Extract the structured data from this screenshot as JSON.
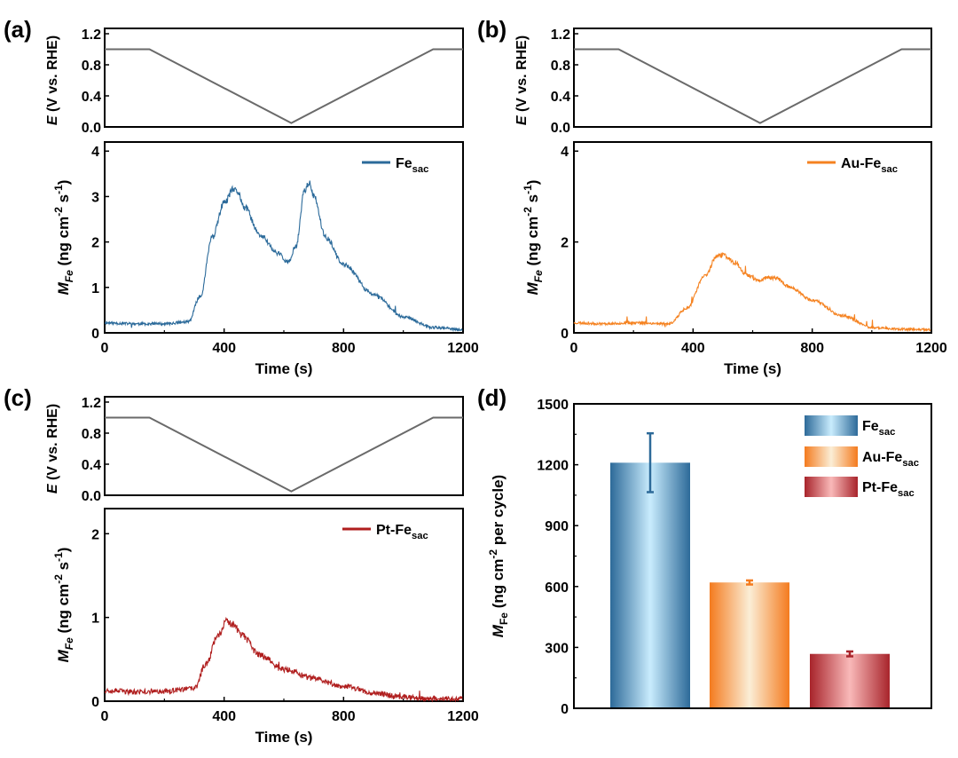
{
  "colors": {
    "fe": "#2b6a9a",
    "au": "#f58220",
    "pt": "#b01e1e",
    "potential": "#6a6a6a"
  },
  "chart_data": [
    {
      "type": "line",
      "panel": "(a)",
      "potential_axis": {
        "ylabel": "E (V vs. RHE)",
        "ylim": [
          0,
          1.2
        ],
        "ticks": [
          "0.0",
          "0.4",
          "0.8",
          "1.2"
        ]
      },
      "potential_profile": {
        "x": [
          0,
          150,
          625,
          1100,
          1200
        ],
        "y": [
          1.0,
          1.0,
          0.05,
          1.0,
          1.0
        ]
      },
      "ylabel": "M_Fe (ng cm^-2 s^-1)",
      "ylim": [
        0,
        4.2
      ],
      "y_ticks": [
        "0",
        "1",
        "2",
        "3",
        "4"
      ],
      "xlim": [
        0,
        1200
      ],
      "x_ticks": [
        "0",
        "400",
        "800",
        "1200"
      ],
      "xlabel": "Time (s)",
      "series": [
        {
          "name": "Fe_sac",
          "legend": "Fe",
          "legend_sub": "sac",
          "x": [
            0,
            100,
            200,
            280,
            320,
            360,
            400,
            430,
            445,
            470,
            520,
            580,
            615,
            640,
            670,
            685,
            700,
            740,
            800,
            900,
            1000,
            1100,
            1200
          ],
          "y": [
            0.22,
            0.2,
            0.2,
            0.24,
            0.8,
            2.1,
            2.85,
            3.15,
            3.1,
            2.75,
            2.15,
            1.75,
            1.55,
            1.9,
            3.15,
            3.3,
            3.0,
            2.1,
            1.5,
            0.85,
            0.35,
            0.12,
            0.07
          ]
        }
      ],
      "noise": 0.045,
      "seed": 11
    },
    {
      "type": "line",
      "panel": "(b)",
      "potential_axis": {
        "ylabel": "E (V vs. RHE)",
        "ylim": [
          0,
          1.2
        ],
        "ticks": [
          "0.0",
          "0.4",
          "0.8",
          "1.2"
        ]
      },
      "potential_profile": {
        "x": [
          0,
          150,
          625,
          1100,
          1200
        ],
        "y": [
          1.0,
          1.0,
          0.05,
          1.0,
          1.0
        ]
      },
      "ylabel": "M_Fe (ng cm^-2 s^-1)",
      "ylim": [
        0,
        4.2
      ],
      "y_ticks": [
        "0",
        "2",
        "4"
      ],
      "xlim": [
        0,
        1200
      ],
      "x_ticks": [
        "0",
        "400",
        "800",
        "1200"
      ],
      "xlabel": "Time (s)",
      "series": [
        {
          "name": "Au-Fe_sac",
          "legend": "Au-Fe",
          "legend_sub": "sac",
          "x": [
            0,
            100,
            200,
            320,
            380,
            440,
            480,
            500,
            540,
            580,
            620,
            650,
            680,
            720,
            800,
            900,
            1000,
            1100,
            1200
          ],
          "y": [
            0.22,
            0.2,
            0.22,
            0.2,
            0.55,
            1.25,
            1.68,
            1.72,
            1.55,
            1.28,
            1.15,
            1.22,
            1.2,
            1.02,
            0.72,
            0.38,
            0.12,
            0.08,
            0.07
          ]
        }
      ],
      "noise": 0.04,
      "seed": 23
    },
    {
      "type": "line",
      "panel": "(c)",
      "potential_axis": {
        "ylabel": "E (V vs. RHE)",
        "ylim": [
          0,
          1.2
        ],
        "ticks": [
          "0.0",
          "0.4",
          "0.8",
          "1.2"
        ]
      },
      "potential_profile": {
        "x": [
          0,
          150,
          625,
          1100,
          1200
        ],
        "y": [
          1.0,
          1.0,
          0.05,
          1.0,
          1.0
        ]
      },
      "ylabel": "M_Fe (ng cm^-2 s^-1)",
      "ylim": [
        0,
        2.3
      ],
      "y_ticks": [
        "0",
        "1",
        "2"
      ],
      "xlim": [
        0,
        1200
      ],
      "x_ticks": [
        "0",
        "400",
        "800",
        "1200"
      ],
      "xlabel": "Time (s)",
      "series": [
        {
          "name": "Pt-Fe_sac",
          "legend": "Pt-Fe",
          "legend_sub": "sac",
          "x": [
            0,
            100,
            200,
            300,
            340,
            380,
            410,
            430,
            460,
            520,
            600,
            700,
            800,
            900,
            1000,
            1100,
            1200
          ],
          "y": [
            0.13,
            0.11,
            0.12,
            0.15,
            0.45,
            0.8,
            0.95,
            0.92,
            0.78,
            0.55,
            0.38,
            0.27,
            0.18,
            0.1,
            0.05,
            0.03,
            0.03
          ]
        }
      ],
      "noise": 0.05,
      "seed": 37
    },
    {
      "type": "bar",
      "panel": "(d)",
      "ylabel": "M_Fe (ng cm^-2 per cycle)",
      "ylim": [
        0,
        1500
      ],
      "y_ticks": [
        "0",
        "300",
        "600",
        "900",
        "1200",
        "1500"
      ],
      "categories": [
        "Fe_sac",
        "Au-Fe_sac",
        "Pt-Fe_sac"
      ],
      "values": [
        1210,
        620,
        268
      ],
      "errors": [
        145,
        10,
        12
      ],
      "legend": [
        {
          "label": "Fe",
          "sub": "sac",
          "dark": "#2d6a99",
          "light": "#c9ecfd"
        },
        {
          "label": "Au-Fe",
          "sub": "sac",
          "dark": "#f47b1f",
          "light": "#fbeed6"
        },
        {
          "label": "Pt-Fe",
          "sub": "sac",
          "dark": "#a8242b",
          "light": "#f9b9b9"
        }
      ]
    }
  ]
}
